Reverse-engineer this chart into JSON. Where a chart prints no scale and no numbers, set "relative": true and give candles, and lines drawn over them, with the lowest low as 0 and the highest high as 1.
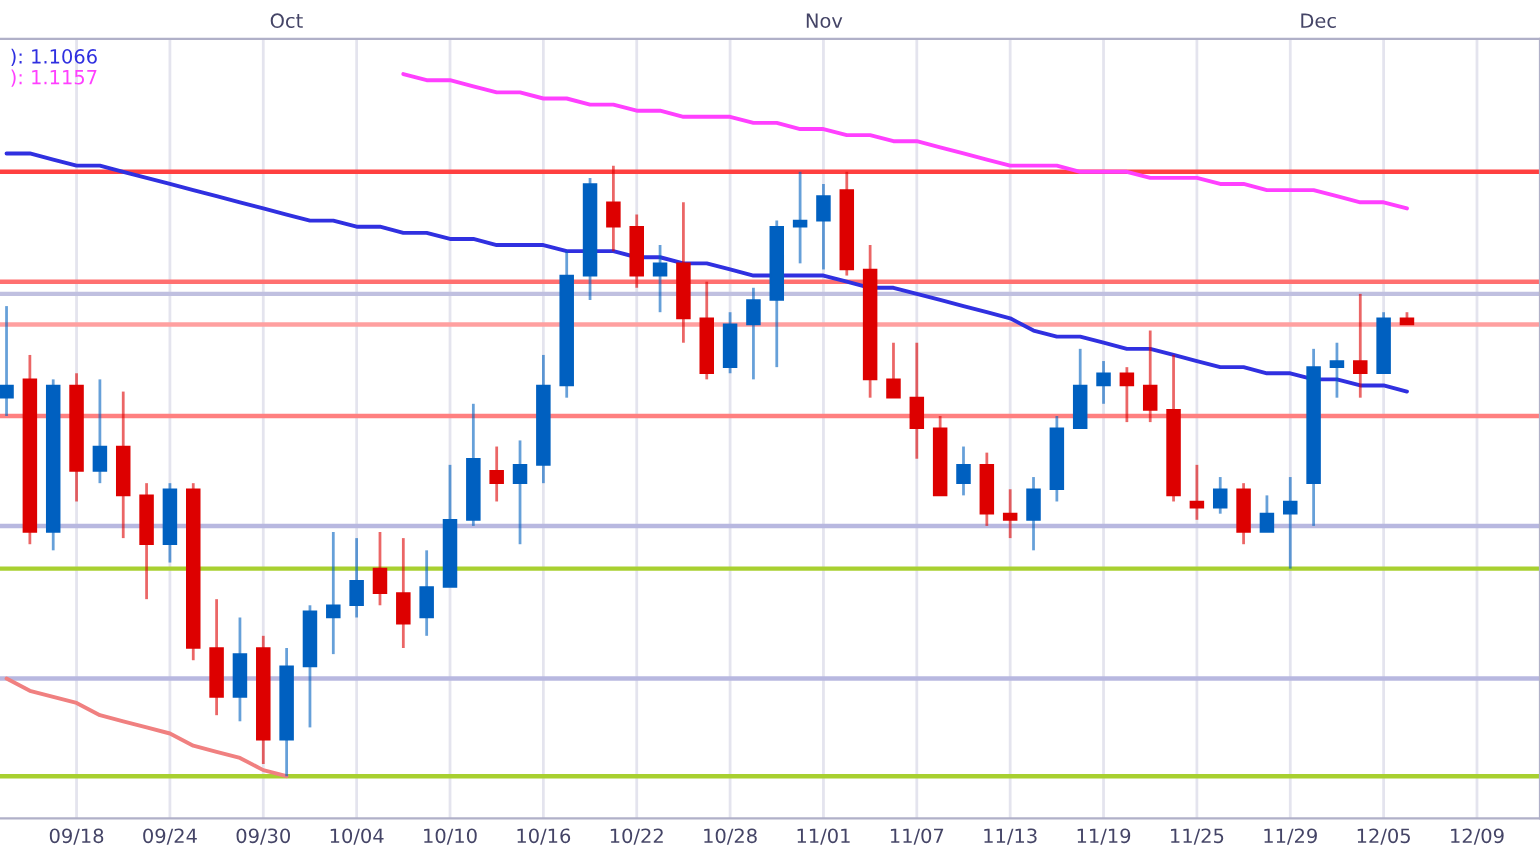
{
  "chart_data": {
    "type": "candlestick",
    "relative": true,
    "categories": [
      null,
      null,
      null,
      "09/18",
      null,
      null,
      null,
      "09/24",
      null,
      null,
      null,
      "09/30",
      null,
      null,
      null,
      "10/04",
      null,
      null,
      null,
      "10/10",
      null,
      null,
      null,
      "10/16",
      null,
      null,
      null,
      "10/22",
      null,
      null,
      null,
      "10/28",
      null,
      null,
      null,
      "11/01",
      null,
      null,
      null,
      "11/07",
      null,
      null,
      null,
      "11/13",
      null,
      null,
      null,
      "11/19",
      null,
      null,
      null,
      "11/25",
      null,
      null,
      null,
      "11/29",
      null,
      null,
      null,
      "12/05",
      null,
      null,
      null,
      "12/09",
      null,
      null
    ],
    "annotations": [
      "Oct",
      "Nov",
      "Dec"
    ],
    "ohlc": [
      [
        0.62,
        0.77,
        0.59,
        0.64
      ],
      [
        0.65,
        0.69,
        0.38,
        0.4
      ],
      [
        0.4,
        0.65,
        0.37,
        0.64
      ],
      [
        0.64,
        0.66,
        0.45,
        0.5
      ],
      [
        0.5,
        0.65,
        0.48,
        0.54
      ],
      [
        0.54,
        0.63,
        0.39,
        0.46
      ],
      [
        0.46,
        0.48,
        0.29,
        0.38
      ],
      [
        0.38,
        0.48,
        0.35,
        0.47
      ],
      [
        0.47,
        0.48,
        0.19,
        0.21
      ],
      [
        0.21,
        0.29,
        0.1,
        0.13
      ],
      [
        0.13,
        0.26,
        0.09,
        0.2
      ],
      [
        0.21,
        0.23,
        0.02,
        0.06
      ],
      [
        0.06,
        0.21,
        0.0,
        0.18
      ],
      [
        0.18,
        0.28,
        0.08,
        0.27
      ],
      [
        0.26,
        0.4,
        0.2,
        0.28
      ],
      [
        0.28,
        0.39,
        0.26,
        0.32
      ],
      [
        0.34,
        0.4,
        0.28,
        0.3
      ],
      [
        0.3,
        0.39,
        0.21,
        0.25
      ],
      [
        0.26,
        0.37,
        0.23,
        0.31
      ],
      [
        0.31,
        0.51,
        0.31,
        0.42
      ],
      [
        0.42,
        0.61,
        0.41,
        0.52
      ],
      [
        0.5,
        0.54,
        0.45,
        0.48
      ],
      [
        0.48,
        0.55,
        0.38,
        0.51
      ],
      [
        0.51,
        0.69,
        0.48,
        0.64
      ],
      [
        0.64,
        0.86,
        0.62,
        0.82
      ],
      [
        0.82,
        0.98,
        0.78,
        0.97
      ],
      [
        0.94,
        1.0,
        0.86,
        0.9
      ],
      [
        0.9,
        0.92,
        0.8,
        0.82
      ],
      [
        0.82,
        0.87,
        0.76,
        0.84
      ],
      [
        0.84,
        0.94,
        0.71,
        0.75
      ],
      [
        0.75,
        0.81,
        0.65,
        0.66
      ],
      [
        0.67,
        0.76,
        0.66,
        0.74
      ],
      [
        0.74,
        0.8,
        0.65,
        0.78
      ],
      [
        0.78,
        0.91,
        0.67,
        0.9
      ],
      [
        0.9,
        0.99,
        0.84,
        0.91
      ],
      [
        0.91,
        0.97,
        0.83,
        0.95
      ],
      [
        0.96,
        0.99,
        0.82,
        0.83
      ],
      [
        0.83,
        0.87,
        0.62,
        0.65
      ],
      [
        0.65,
        0.71,
        0.62,
        0.62
      ],
      [
        0.62,
        0.71,
        0.52,
        0.57
      ],
      [
        0.57,
        0.59,
        0.46,
        0.46
      ],
      [
        0.48,
        0.54,
        0.46,
        0.51
      ],
      [
        0.51,
        0.53,
        0.41,
        0.43
      ],
      [
        0.43,
        0.47,
        0.39,
        0.42
      ],
      [
        0.42,
        0.49,
        0.37,
        0.47
      ],
      [
        0.47,
        0.59,
        0.45,
        0.57
      ],
      [
        0.57,
        0.7,
        0.57,
        0.64
      ],
      [
        0.64,
        0.68,
        0.61,
        0.66
      ],
      [
        0.66,
        0.67,
        0.58,
        0.64
      ],
      [
        0.64,
        0.73,
        0.58,
        0.6
      ],
      [
        0.6,
        0.69,
        0.45,
        0.46
      ],
      [
        0.45,
        0.51,
        0.42,
        0.44
      ],
      [
        0.44,
        0.49,
        0.43,
        0.47
      ],
      [
        0.47,
        0.48,
        0.38,
        0.4
      ],
      [
        0.4,
        0.46,
        0.4,
        0.43
      ],
      [
        0.43,
        0.49,
        0.34,
        0.45
      ],
      [
        0.48,
        0.7,
        0.41,
        0.67
      ],
      [
        0.67,
        0.71,
        0.62,
        0.68
      ],
      [
        0.68,
        0.79,
        0.62,
        0.66
      ],
      [
        0.66,
        0.76,
        0.66,
        0.75
      ],
      [
        0.75,
        0.76,
        0.74,
        0.74
      ],
      null,
      null,
      null,
      null,
      null
    ],
    "colors": [
      "#0060c0",
      "#dd0000",
      "#0060c0",
      "#dd0000",
      "#0060c0",
      "#dd0000",
      "#dd0000",
      "#0060c0",
      "#dd0000",
      "#dd0000",
      "#0060c0",
      "#dd0000",
      "#0060c0",
      "#0060c0",
      "#0060c0",
      "#0060c0",
      "#dd0000",
      "#dd0000",
      "#0060c0",
      "#0060c0",
      "#0060c0",
      "#dd0000",
      "#0060c0",
      "#0060c0",
      "#0060c0",
      "#0060c0",
      "#dd0000",
      "#dd0000",
      "#0060c0",
      "#dd0000",
      "#dd0000",
      "#0060c0",
      "#0060c0",
      "#0060c0",
      "#0060c0",
      "#0060c0",
      "#dd0000",
      "#dd0000",
      "#dd0000",
      "#dd0000",
      "#dd0000",
      "#0060c0",
      "#dd0000",
      "#dd0000",
      "#0060c0",
      "#0060c0",
      "#0060c0",
      "#0060c0",
      "#dd0000",
      "#dd0000",
      "#dd0000",
      "#dd0000",
      "#0060c0",
      "#dd0000",
      "#0060c0",
      "#0060c0",
      "#0060c0",
      "#0060c0",
      "#dd0000",
      "#0060c0",
      "#dd0000",
      null,
      null,
      null,
      null,
      null
    ],
    "series": [
      {
        "type": "line",
        "name": "): 1.1066",
        "color": "#3030e0",
        "values": [
          1.02,
          1.02,
          1.01,
          1.0,
          1.0,
          0.99,
          0.98,
          0.97,
          0.96,
          0.95,
          0.94,
          0.93,
          0.92,
          0.91,
          0.91,
          0.9,
          0.9,
          0.89,
          0.89,
          0.88,
          0.88,
          0.87,
          0.87,
          0.87,
          0.86,
          0.86,
          0.86,
          0.85,
          0.85,
          0.84,
          0.84,
          0.83,
          0.82,
          0.82,
          0.82,
          0.82,
          0.81,
          0.8,
          0.8,
          0.79,
          0.78,
          0.77,
          0.76,
          0.75,
          0.73,
          0.72,
          0.72,
          0.71,
          0.7,
          0.7,
          0.69,
          0.68,
          0.67,
          0.67,
          0.66,
          0.66,
          0.65,
          0.65,
          0.64,
          0.64,
          0.63,
          null,
          null,
          null,
          null,
          null
        ]
      },
      {
        "type": "line",
        "name": "): 1.1157",
        "color": "#ff40ff",
        "values": [
          null,
          null,
          null,
          null,
          null,
          null,
          null,
          null,
          null,
          null,
          null,
          null,
          null,
          null,
          null,
          null,
          null,
          1.15,
          1.14,
          1.14,
          1.13,
          1.12,
          1.12,
          1.11,
          1.11,
          1.1,
          1.1,
          1.09,
          1.09,
          1.08,
          1.08,
          1.08,
          1.07,
          1.07,
          1.06,
          1.06,
          1.05,
          1.05,
          1.04,
          1.04,
          1.03,
          1.02,
          1.01,
          1.0,
          1.0,
          1.0,
          0.99,
          0.99,
          0.99,
          0.98,
          0.98,
          0.98,
          0.97,
          0.97,
          0.96,
          0.96,
          0.96,
          0.95,
          0.94,
          0.94,
          0.93,
          null,
          null,
          null,
          null,
          null
        ]
      },
      {
        "type": "line",
        "color": "#f08080",
        "values": [
          0.16,
          0.14,
          0.13,
          0.12,
          0.1,
          0.09,
          0.08,
          0.07,
          0.05,
          0.04,
          0.03,
          0.01,
          0.0,
          null,
          null,
          null,
          null,
          null,
          null,
          null,
          null,
          null,
          null,
          null,
          null,
          null,
          null,
          null,
          null,
          null,
          null,
          null,
          null,
          null,
          null,
          null,
          null,
          null,
          null,
          null,
          null,
          null,
          null,
          null,
          null,
          null,
          null,
          null,
          null,
          null,
          null,
          null,
          null,
          null,
          null,
          null,
          null,
          null,
          null,
          null,
          null,
          null,
          null,
          null,
          null,
          null
        ]
      }
    ],
    "ref_lines": [
      {
        "axis": "y",
        "value": 0.99,
        "color": "#ff4040"
      },
      {
        "axis": "y",
        "value": 0.81,
        "color": "#ff7070"
      },
      {
        "axis": "y",
        "value": 0.79,
        "color": "#c0c0e0"
      },
      {
        "axis": "y",
        "value": 0.74,
        "color": "#ffa0a0"
      },
      {
        "axis": "y",
        "value": 0.59,
        "color": "#ff8080"
      },
      {
        "axis": "y",
        "value": 0.41,
        "color": "#b8b8e0"
      },
      {
        "axis": "y",
        "value": 0.34,
        "color": "#a8d030"
      },
      {
        "axis": "y",
        "value": 0.16,
        "color": "#b8b8e0"
      },
      {
        "axis": "y",
        "value": 0.0,
        "color": "#a8d030"
      }
    ],
    "grid": "x",
    "legend": "top left"
  }
}
